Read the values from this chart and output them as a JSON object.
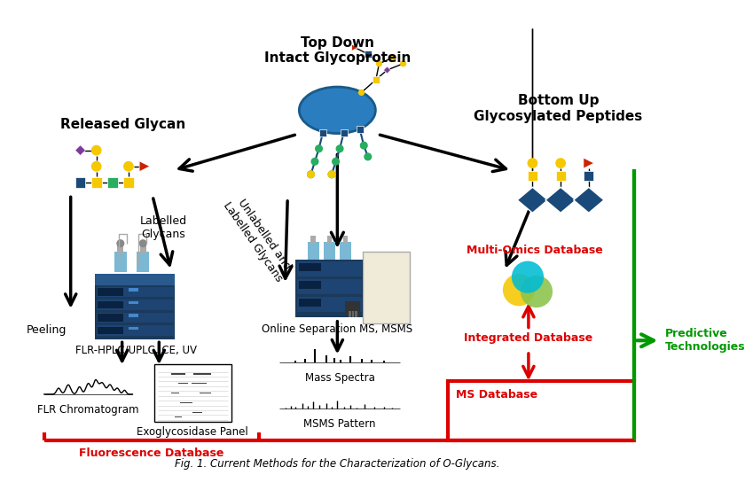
{
  "title": "Fig. 1. Current Methods for the Characterization of O-Glycans.",
  "background_color": "#ffffff",
  "labels": {
    "top_center": "Top Down\nIntact Glycoprotein",
    "top_left": "Released Glycan",
    "top_right": "Bottom Up\nGlycosylated Peptides",
    "peeling": "Peeling",
    "labelled": "Labelled\nGlycans",
    "unlabelled": "Unlabelled and\nLabelled Glycans",
    "flr_hplc": "FLR-HPLC/UPLC, CE, UV",
    "online_sep": "Online Separation MS, MSMS",
    "flr_chrom": "FLR Chromatogram",
    "exogly": "Exoglycosidase Panel",
    "mass_spectra": "Mass Spectra",
    "msms": "MSMS Pattern",
    "fluor_db": "Fluorescence Database",
    "ms_db": "MS Database",
    "integrated_db": "Integrated Database",
    "multi_omics": "Multi-Omics Database",
    "predictive": "Predictive\nTechnologies"
  },
  "colors": {
    "red": "#dd0000",
    "green": "#009900",
    "black": "#000000",
    "yellow": "#f5c800",
    "blue_dark": "#1a3a5c",
    "blue_med": "#2e86c1",
    "blue_protein": "#2a7dbf",
    "purple": "#7d3c98",
    "red_tri": "#cc2200",
    "green_circle": "#27ae60",
    "cyan": "#00bcd4",
    "lime": "#8bc34a",
    "blue_sq": "#1a4a7a",
    "bottle_blue": "#7ab8d4"
  }
}
